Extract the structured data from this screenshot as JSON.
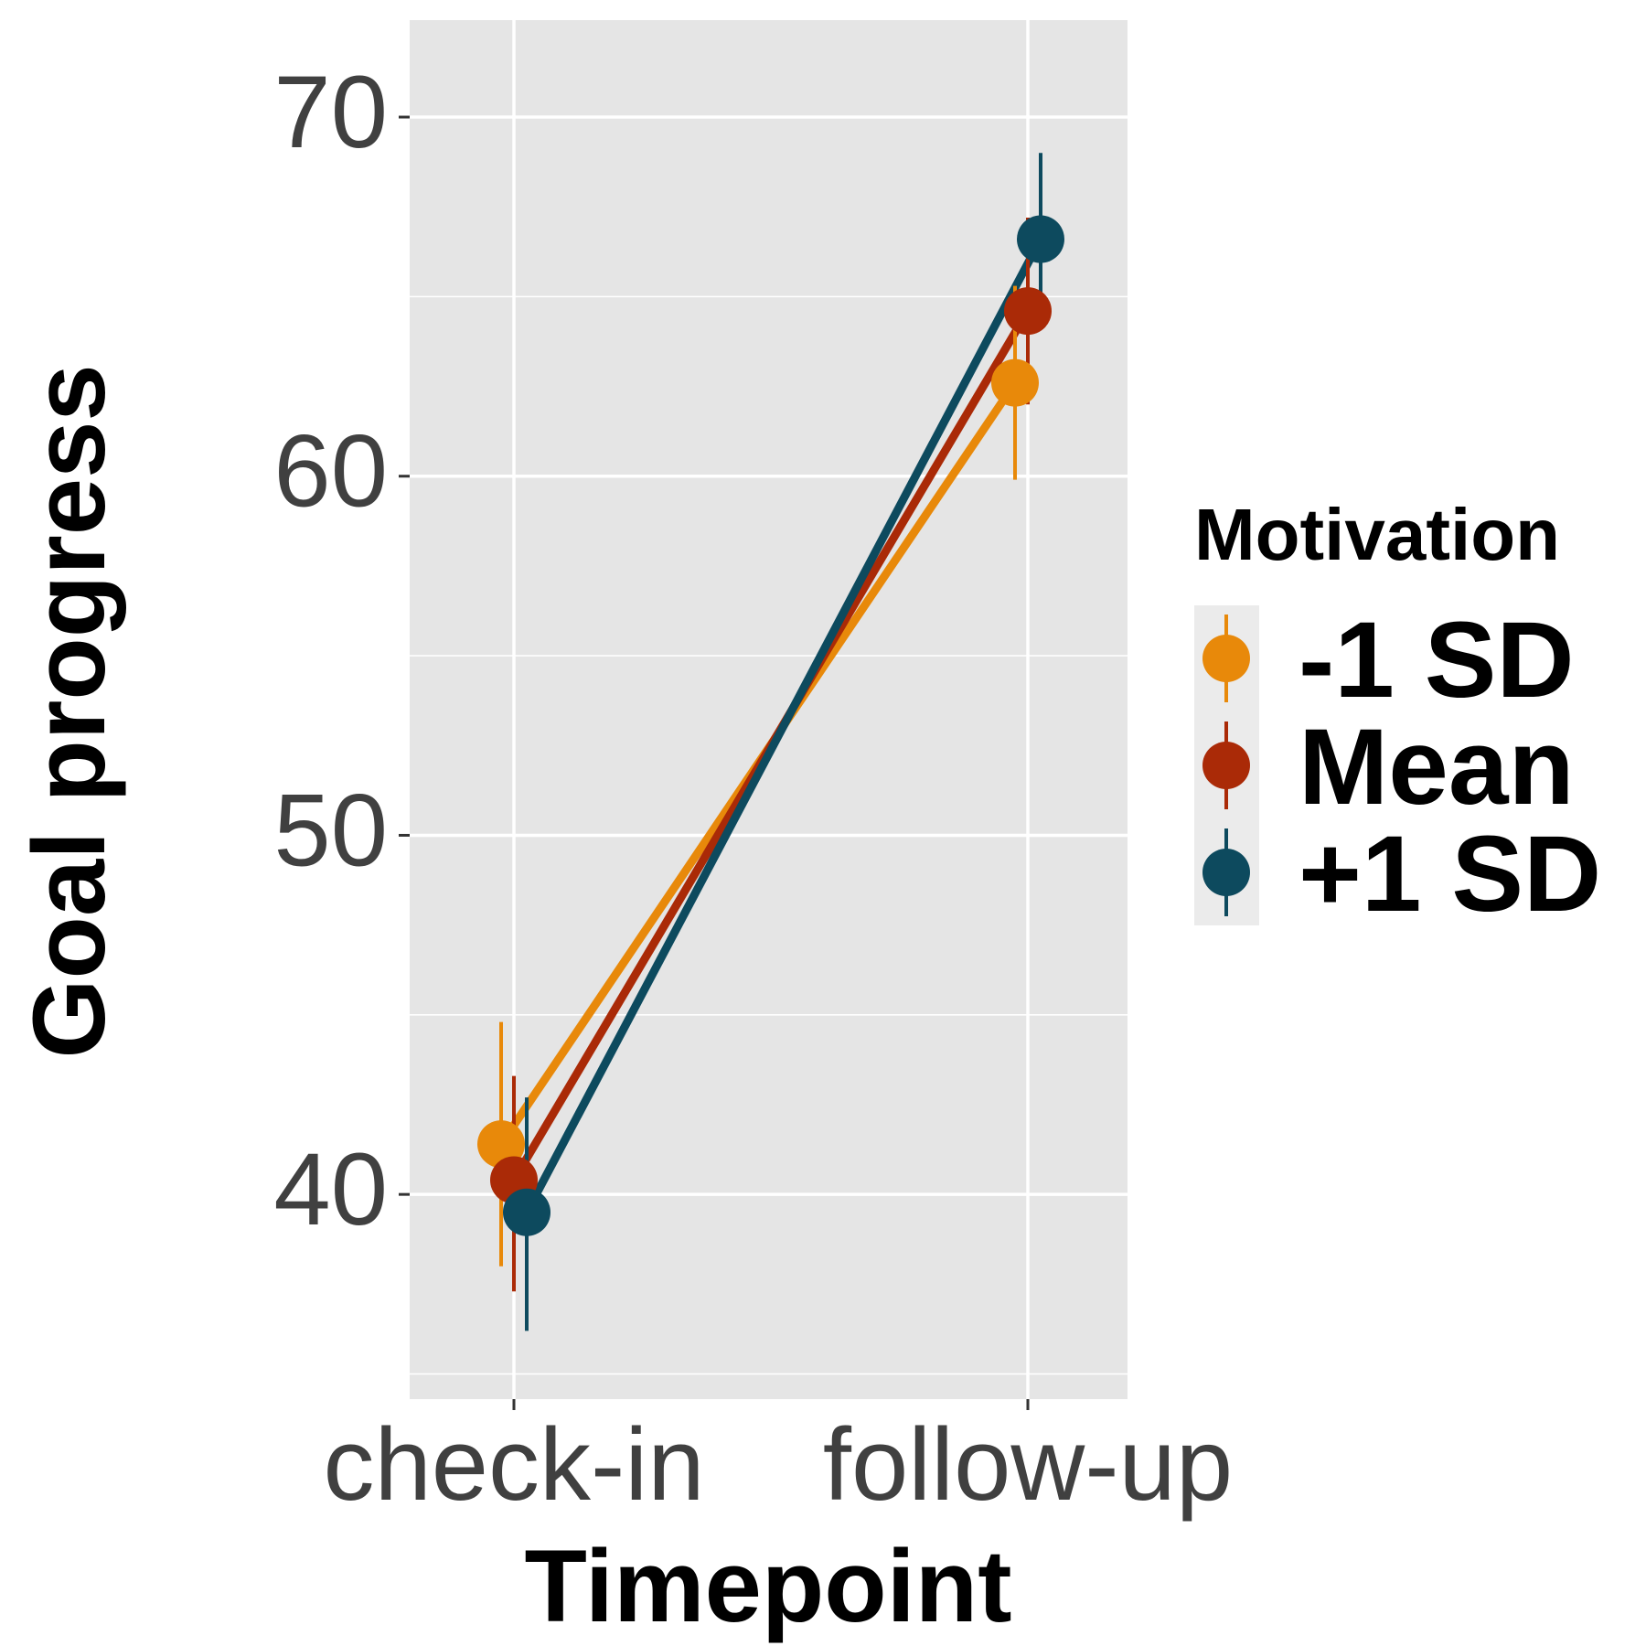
{
  "chart_data": {
    "type": "line",
    "xlabel": "Timepoint",
    "ylabel": "Goal progress",
    "categories": [
      "check-in",
      "follow-up"
    ],
    "ylim": [
      34.3,
      72.7
    ],
    "yticks": [
      40,
      50,
      60,
      70
    ],
    "grid": true,
    "legend": {
      "title": "Motivation",
      "position": "right"
    },
    "series": [
      {
        "name": "-1 SD",
        "color": "#E8890A",
        "values": [
          41.4,
          62.6
        ],
        "ci_low": [
          38.0,
          59.9
        ],
        "ci_high": [
          44.8,
          65.3
        ]
      },
      {
        "name": "Mean",
        "color": "#AA2A07",
        "values": [
          40.4,
          64.6
        ],
        "ci_low": [
          37.3,
          62.0
        ],
        "ci_high": [
          43.3,
          67.2
        ]
      },
      {
        "name": "+1 SD",
        "color": "#0D4A5E",
        "values": [
          39.5,
          66.6
        ],
        "ci_low": [
          36.2,
          64.2
        ],
        "ci_high": [
          42.7,
          69.0
        ]
      }
    ]
  }
}
